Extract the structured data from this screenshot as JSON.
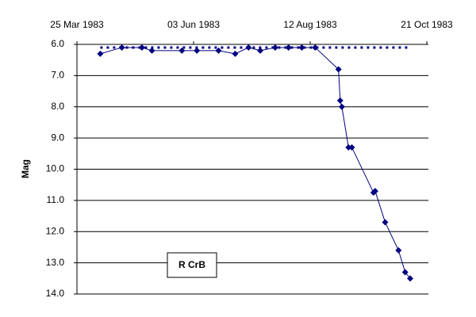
{
  "chart_data": {
    "type": "line",
    "y_label": "Mag",
    "annotation": "R CrB",
    "xlim": [
      "1983-03-25",
      "1983-10-21"
    ],
    "xticks": [
      {
        "value": "1983-03-25",
        "label": "25 Mar 1983"
      },
      {
        "value": "1983-06-03",
        "label": "03 Jun 1983"
      },
      {
        "value": "1983-08-12",
        "label": "12 Aug 1983"
      },
      {
        "value": "1983-10-21",
        "label": "21 Oct 1983"
      }
    ],
    "ylim": [
      6,
      14
    ],
    "y_inverted": true,
    "yticks": [
      {
        "value": 6,
        "label": "6.0"
      },
      {
        "value": 7,
        "label": "7.0"
      },
      {
        "value": 8,
        "label": "8.0"
      },
      {
        "value": 9,
        "label": "9.0"
      },
      {
        "value": 10,
        "label": "10.0"
      },
      {
        "value": 11,
        "label": "11.0"
      },
      {
        "value": 12,
        "label": "12.0"
      },
      {
        "value": 13,
        "label": "13.0"
      },
      {
        "value": 14,
        "label": "14.0"
      }
    ],
    "grid": true,
    "series": [
      {
        "color": "#000080",
        "style": "solid",
        "markers": true,
        "x": [
          "1983-04-08",
          "1983-04-21",
          "1983-05-03",
          "1983-05-09",
          "1983-05-27",
          "1983-06-05",
          "1983-06-18",
          "1983-06-28",
          "1983-07-06",
          "1983-07-13",
          "1983-07-22",
          "1983-07-30",
          "1983-08-07",
          "1983-08-15",
          "1983-08-29",
          "1983-08-30",
          "1983-08-31",
          "1983-09-04",
          "1983-09-06",
          "1983-09-19",
          "1983-09-20",
          "1983-09-26",
          "1983-10-04",
          "1983-10-08",
          "1983-10-11"
        ],
        "values": [
          6.3,
          6.1,
          6.1,
          6.2,
          6.2,
          6.2,
          6.2,
          6.3,
          6.1,
          6.2,
          6.1,
          6.1,
          6.1,
          6.1,
          6.8,
          7.8,
          8.0,
          9.3,
          9.3,
          10.75,
          10.7,
          11.7,
          12.6,
          13.3,
          13.5
        ]
      },
      {
        "color": "#000080",
        "style": "dotted",
        "markers": false,
        "x": [
          "1983-04-08",
          "1983-10-11"
        ],
        "values": [
          6.1,
          6.1
        ]
      }
    ]
  }
}
